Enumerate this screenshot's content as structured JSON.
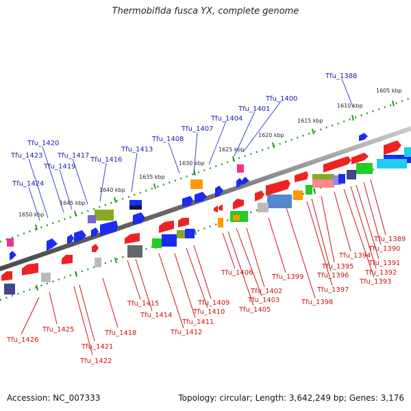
{
  "title": "Thermobifida fusca YX, complete genome",
  "accession": "Accession: NC_007333",
  "topology": "Topology: circular; Length: 3,642,249 bp; Genes: 3,176",
  "colors": {
    "upper_label": "#1a1aa8",
    "lower_label": "#cc1111",
    "tick": "#229922",
    "backbone": "#777777"
  },
  "ruler_labels": [
    "1605 kbp",
    "1610 kbp",
    "1615 kbp",
    "1620 kbp",
    "1625 kbp",
    "1630 kbp",
    "1635 kbp",
    "1640 kbp",
    "1645 kbp",
    "1650 kbp"
  ],
  "genes_upper": [
    "Tfu_1388",
    "Tfu_1400",
    "Tfu_1401",
    "Tfu_1404",
    "Tfu_1407",
    "Tfu_1408",
    "Tfu_1413",
    "Tfu_1416",
    "Tfu_1417",
    "Tfu_1419",
    "Tfu_1420",
    "Tfu_1423",
    "Tfu_1424"
  ],
  "genes_lower": [
    "Tfu_1389",
    "Tfu_1390",
    "Tfu_1391",
    "Tfu_1392",
    "Tfu_1393",
    "Tfu_1394",
    "Tfu_1395",
    "Tfu_1396",
    "Tfu_1397",
    "Tfu_1398",
    "Tfu_1399",
    "Tfu_1402",
    "Tfu_1403",
    "Tfu_1405",
    "Tfu_1406",
    "Tfu_1409",
    "Tfu_1410",
    "Tfu_1411",
    "Tfu_1412",
    "Tfu_1414",
    "Tfu_1415",
    "Tfu_1418",
    "Tfu_1421",
    "Tfu_1422",
    "Tfu_1425",
    "Tfu_1426"
  ]
}
